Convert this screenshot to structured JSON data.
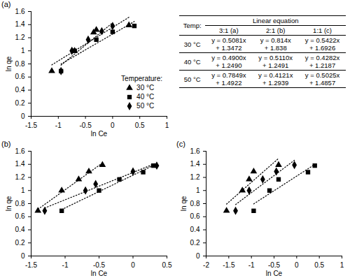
{
  "chart_data": [
    {
      "type": "scatter",
      "title": "(a)",
      "x_label": "ln Ce",
      "y_label": "ln qe",
      "xlim": [
        -1.5,
        1
      ],
      "xticks": [
        -1.5,
        -1,
        -0.5,
        0,
        0.5,
        1
      ],
      "ylim": [
        0,
        1.6
      ],
      "yticks": [
        0,
        0.2,
        0.4,
        0.6,
        0.8,
        1,
        1.2,
        1.4,
        1.6
      ],
      "line_style": "dotted",
      "legend": "bottom-right",
      "legend_title": "Temperature:",
      "series": [
        {
          "name": "30 °C",
          "marker": "triangle",
          "color": "#000000",
          "x": [
            -1.12,
            -0.7,
            -0.35,
            -0.3,
            0.3
          ],
          "values": [
            0.69,
            1.0,
            1.28,
            1.32,
            1.39
          ]
        },
        {
          "name": "40 °C",
          "marker": "square",
          "color": "#000000",
          "x": [
            -0.95,
            -0.7,
            -0.3,
            0.0,
            0.4
          ],
          "values": [
            0.69,
            1.0,
            1.17,
            1.29,
            1.38
          ]
        },
        {
          "name": "50 °C",
          "marker": "diamond",
          "color": "#000000",
          "x": [
            -0.95,
            -0.75,
            -0.45,
            -0.2,
            0.0
          ],
          "values": [
            0.69,
            1.0,
            1.17,
            1.3,
            1.38
          ]
        }
      ]
    },
    {
      "type": "scatter",
      "title": "(b)",
      "x_label": "ln Ce",
      "y_label": "ln qe",
      "xlim": [
        -1.5,
        0.5
      ],
      "xticks": [
        -1.5,
        -1,
        -0.5,
        0,
        0.5
      ],
      "ylim": [
        0,
        1.6
      ],
      "yticks": [
        0,
        0.2,
        0.4,
        0.6,
        0.8,
        1,
        1.2,
        1.4,
        1.6
      ],
      "line_style": "dotted",
      "series": [
        {
          "name": "30 °C",
          "marker": "triangle",
          "color": "#000000",
          "x": [
            -1.4,
            -1.05,
            -0.8,
            -0.65,
            -0.45
          ],
          "values": [
            0.69,
            1.0,
            1.17,
            1.29,
            1.39
          ]
        },
        {
          "name": "40 °C",
          "marker": "square",
          "color": "#000000",
          "x": [
            -1.05,
            -0.5,
            -0.2,
            0.15,
            0.3
          ],
          "values": [
            0.69,
            1.0,
            1.17,
            1.28,
            1.38
          ]
        },
        {
          "name": "50 °C",
          "marker": "diamond",
          "color": "#000000",
          "x": [
            -1.3,
            -0.7,
            -0.55,
            0.0,
            0.35
          ],
          "values": [
            0.69,
            1.0,
            1.1,
            1.29,
            1.38
          ]
        }
      ]
    },
    {
      "type": "scatter",
      "title": "(c)",
      "x_label": "ln Ce",
      "y_label": "ln qe",
      "xlim": [
        -2,
        1
      ],
      "xticks": [
        -2,
        -1.5,
        -1,
        -0.5,
        0,
        0.5,
        1
      ],
      "ylim": [
        0,
        1.6
      ],
      "yticks": [
        0,
        0.2,
        0.4,
        0.6,
        0.8,
        1,
        1.2,
        1.4,
        1.6
      ],
      "line_style": "dotted",
      "series": [
        {
          "name": "30 °C",
          "marker": "triangle",
          "color": "#000000",
          "x": [
            -1.55,
            -1.2,
            -1.05,
            -0.95,
            -0.4
          ],
          "values": [
            0.69,
            1.0,
            1.17,
            1.29,
            1.39
          ]
        },
        {
          "name": "40 °C",
          "marker": "square",
          "color": "#000000",
          "x": [
            -0.95,
            -0.6,
            -0.4,
            0.25,
            0.4
          ],
          "values": [
            0.69,
            1.0,
            1.17,
            1.28,
            1.38
          ]
        },
        {
          "name": "50 °C",
          "marker": "diamond",
          "color": "#000000",
          "x": [
            -1.35,
            -1.05,
            -0.75,
            -0.45,
            -0.05
          ],
          "values": [
            0.69,
            1.0,
            1.17,
            1.29,
            1.39
          ]
        }
      ]
    }
  ],
  "table": {
    "header": [
      "Temp:",
      "Linear equation"
    ],
    "columns": [
      "3:1 (a)",
      "2:1 (b)",
      "1:1 (c)"
    ],
    "rows": [
      {
        "temp": "30 °C",
        "cells": [
          [
            "y = 0.5081x",
            "+ 1.3472"
          ],
          [
            "y = 0.814x",
            "+ 1.838"
          ],
          [
            "y = 0.5422x",
            "+ 1.6926"
          ]
        ]
      },
      {
        "temp": "40 °C",
        "cells": [
          [
            "y = 0.4900x",
            "+ 1.2490"
          ],
          [
            "y = 0.5110x",
            "+ 1.2491"
          ],
          [
            "y = 0.4282x",
            "+ 1.2187"
          ]
        ]
      },
      {
        "temp": "50 °C",
        "cells": [
          [
            "y = 0.7849x",
            "+ 1.4922"
          ],
          [
            "y = 0.4121x",
            "+ 1.2939"
          ],
          [
            "y = 0.5025x",
            "+ 1.4857"
          ]
        ]
      }
    ]
  }
}
